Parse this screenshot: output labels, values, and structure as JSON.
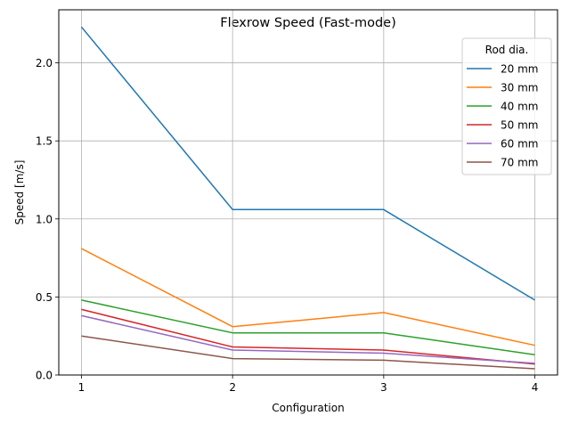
{
  "chart_data": {
    "type": "line",
    "title": "Flexrow Speed (Fast-mode)",
    "xlabel": "Configuration",
    "ylabel": "Speed [m/s]",
    "x": [
      1,
      2,
      3,
      4
    ],
    "xticks": [
      "1",
      "2",
      "3",
      "4"
    ],
    "yticks": [
      "0.0",
      "0.5",
      "1.0",
      "1.5",
      "2.0"
    ],
    "ytick_values": [
      0.0,
      0.5,
      1.0,
      1.5,
      2.0
    ],
    "xlim": [
      0.85,
      4.15
    ],
    "ylim": [
      0.0,
      2.34
    ],
    "grid": true,
    "legend_title": "Rod dia.",
    "legend_position": "top-right",
    "series": [
      {
        "name": "20 mm",
        "color": "#1f77b4",
        "values": [
          2.23,
          1.06,
          1.06,
          0.48
        ]
      },
      {
        "name": "30 mm",
        "color": "#ff7f0e",
        "values": [
          0.81,
          0.31,
          0.4,
          0.19
        ]
      },
      {
        "name": "40 mm",
        "color": "#2ca02c",
        "values": [
          0.48,
          0.27,
          0.27,
          0.13
        ]
      },
      {
        "name": "50 mm",
        "color": "#d62728",
        "values": [
          0.42,
          0.18,
          0.16,
          0.07
        ]
      },
      {
        "name": "60 mm",
        "color": "#9467bd",
        "values": [
          0.38,
          0.16,
          0.14,
          0.075
        ]
      },
      {
        "name": "70 mm",
        "color": "#8c564b",
        "values": [
          0.25,
          0.105,
          0.095,
          0.04
        ]
      }
    ]
  }
}
